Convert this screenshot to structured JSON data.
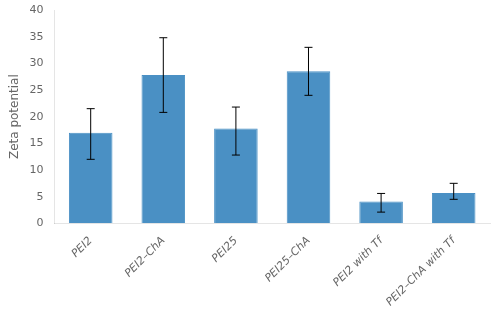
{
  "chart_data": {
    "type": "bar",
    "categories": [
      "PEI2",
      "PEI2–ChA",
      "PEI25",
      "PEI25–ChA",
      "PEI2 with Tf",
      "PEI2–ChA with Tf"
    ],
    "values": [
      17.0,
      27.8,
      17.8,
      28.5,
      4.1,
      5.7
    ],
    "errors_lower": [
      5.0,
      7.0,
      5.0,
      4.5,
      2.0,
      1.2
    ],
    "errors_upper": [
      4.5,
      7.0,
      4.0,
      4.5,
      1.5,
      1.8
    ],
    "color": "#4a90c4",
    "ylabel": "Zeta potential",
    "ylim": [
      0,
      40
    ],
    "yticks": [
      0,
      5,
      10,
      15,
      20,
      25,
      30,
      35,
      40
    ],
    "grid": false
  }
}
